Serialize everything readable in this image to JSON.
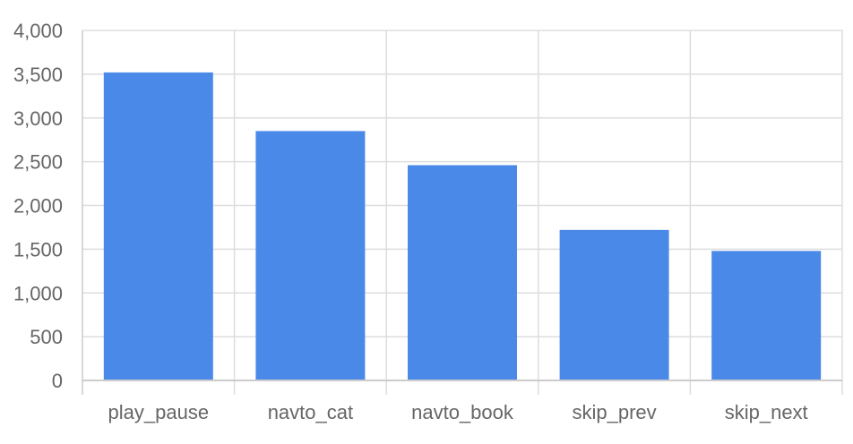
{
  "chart_data": {
    "type": "bar",
    "title": "",
    "xlabel": "",
    "ylabel": "",
    "categories": [
      "play_pause",
      "navto_cat",
      "navto_book",
      "skip_prev",
      "skip_next"
    ],
    "values": [
      3520,
      2850,
      2460,
      1720,
      1480
    ],
    "ylim": [
      0,
      4000
    ],
    "yticks": [
      0,
      500,
      1000,
      1500,
      2000,
      2500,
      3000,
      3500,
      4000
    ],
    "ytick_labels": [
      "0",
      "500",
      "1,000",
      "1,500",
      "2,000",
      "2,500",
      "3,000",
      "3,500",
      "4,000"
    ],
    "grid": true,
    "legend": "none",
    "bar_color": "#4a89e8",
    "grid_color": "#dddddd",
    "axis_color": "#cccccc",
    "label_color": "#666666"
  }
}
